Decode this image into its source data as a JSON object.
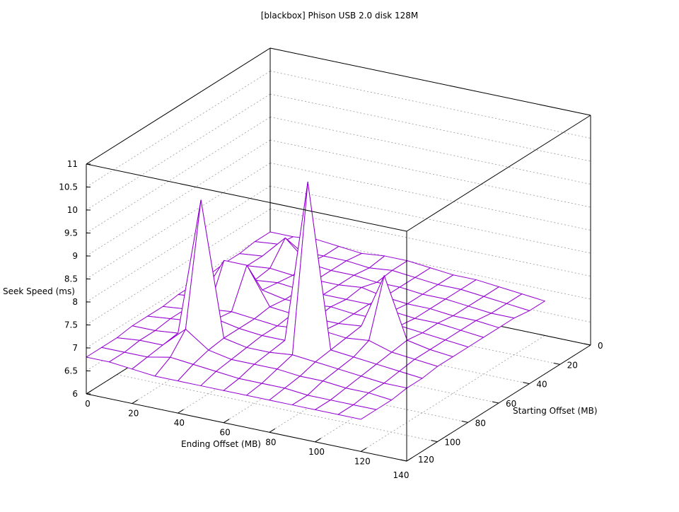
{
  "chart_data": {
    "type": "surface3d",
    "title": "[blackbox] Phison USB 2.0 disk 128M",
    "xlabel": "Ending Offset (MB)",
    "ylabel": "Starting Offset (MB)",
    "zlabel": "Seek Speed (ms)",
    "xlim": [
      0,
      140
    ],
    "ylim": [
      0,
      120
    ],
    "zlim": [
      6,
      11
    ],
    "xticks": [
      "0",
      "20",
      "40",
      "60",
      "80",
      "100",
      "120",
      "140"
    ],
    "yticks": [
      "0",
      "20",
      "40",
      "60",
      "80",
      "100",
      "120"
    ],
    "zticks": [
      "6",
      "6.5",
      "7",
      "7.5",
      "8",
      "8.5",
      "9",
      "9.5",
      "10",
      "10.5",
      "11"
    ],
    "grid": true,
    "surface_color": "#9400d3",
    "underside_color": "#009e73",
    "x": [
      0,
      10,
      20,
      30,
      40,
      50,
      60,
      70,
      80,
      90,
      100,
      110,
      120
    ],
    "y": [
      0,
      10,
      20,
      30,
      40,
      50,
      60,
      70,
      80,
      90,
      100,
      110,
      120
    ],
    "z": [
      [
        7.0,
        7.0,
        7.05,
        7.0,
        6.95,
        7.0,
        7.0,
        6.95,
        6.9,
        6.9,
        6.85,
        6.8,
        6.75
      ],
      [
        7.0,
        7.05,
        7.0,
        7.0,
        7.0,
        6.95,
        7.0,
        6.95,
        6.9,
        6.9,
        6.85,
        6.8,
        6.75
      ],
      [
        6.95,
        7.0,
        7.5,
        7.05,
        7.0,
        7.0,
        6.95,
        6.95,
        6.9,
        6.9,
        6.85,
        6.8,
        6.8
      ],
      [
        6.95,
        7.0,
        7.05,
        7.0,
        7.0,
        7.0,
        7.05,
        6.95,
        6.9,
        6.9,
        6.85,
        6.85,
        6.8
      ],
      [
        6.9,
        6.95,
        7.0,
        7.05,
        7.0,
        7.0,
        7.0,
        7.0,
        6.95,
        6.9,
        6.9,
        6.85,
        6.8
      ],
      [
        6.9,
        6.95,
        7.1,
        7.1,
        7.0,
        7.0,
        7.05,
        7.0,
        7.0,
        6.95,
        6.9,
        6.85,
        6.8
      ],
      [
        6.9,
        6.95,
        7.85,
        7.85,
        7.05,
        7.0,
        7.0,
        7.0,
        7.05,
        8.25,
        6.95,
        6.85,
        6.8
      ],
      [
        6.85,
        6.9,
        7.0,
        7.05,
        7.0,
        6.95,
        7.0,
        7.05,
        7.0,
        7.05,
        6.9,
        6.85,
        6.8
      ],
      [
        6.85,
        6.9,
        6.95,
        7.1,
        7.0,
        6.95,
        6.95,
        10.5,
        6.95,
        6.9,
        6.85,
        6.8,
        6.75
      ],
      [
        6.85,
        6.85,
        6.9,
        9.9,
        7.0,
        6.9,
        6.9,
        6.95,
        6.9,
        6.85,
        6.8,
        6.75,
        6.75
      ],
      [
        6.8,
        6.85,
        6.85,
        7.3,
        6.95,
        6.85,
        6.85,
        6.85,
        6.8,
        6.8,
        6.75,
        6.75,
        6.7
      ],
      [
        6.8,
        6.8,
        6.8,
        6.9,
        6.85,
        6.8,
        6.75,
        6.75,
        6.75,
        6.7,
        6.7,
        6.7,
        6.7
      ],
      [
        6.8,
        6.8,
        6.75,
        6.7,
        6.7,
        6.7,
        6.7,
        6.7,
        6.7,
        6.7,
        6.7,
        6.7,
        6.7
      ]
    ]
  }
}
